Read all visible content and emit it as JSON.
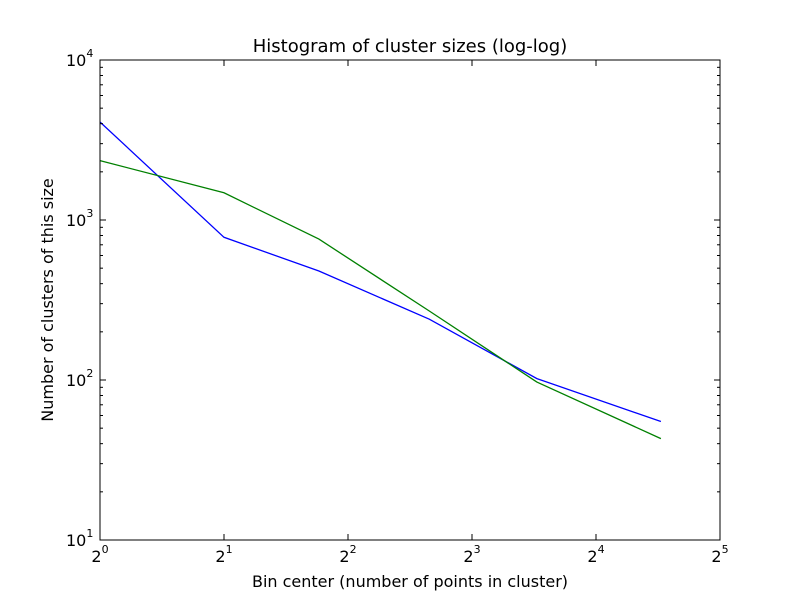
{
  "chart_data": {
    "type": "line",
    "title": "Histogram of cluster sizes (log-log)",
    "xlabel": "Bin center (number of points in cluster)",
    "ylabel": "Number of clusters of this size",
    "x_scale": "log2",
    "y_scale": "log10",
    "xlim": [
      1,
      32
    ],
    "ylim": [
      10,
      10000
    ],
    "x_ticks": [
      {
        "base": "2",
        "exp": "0",
        "value": 1
      },
      {
        "base": "2",
        "exp": "1",
        "value": 2
      },
      {
        "base": "2",
        "exp": "2",
        "value": 4
      },
      {
        "base": "2",
        "exp": "3",
        "value": 8
      },
      {
        "base": "2",
        "exp": "4",
        "value": 16
      },
      {
        "base": "2",
        "exp": "5",
        "value": 32
      }
    ],
    "y_ticks": [
      {
        "base": "10",
        "exp": "1",
        "value": 10
      },
      {
        "base": "10",
        "exp": "2",
        "value": 100
      },
      {
        "base": "10",
        "exp": "3",
        "value": 1000
      },
      {
        "base": "10",
        "exp": "4",
        "value": 10000
      }
    ],
    "grid": false,
    "series": [
      {
        "color": "#0000ff",
        "x": [
          1,
          2,
          3.4,
          6.3,
          11.5,
          23
        ],
        "y": [
          4100,
          780,
          480,
          240,
          102,
          55
        ]
      },
      {
        "color": "#008000",
        "x": [
          1,
          2,
          3.4,
          6.3,
          11.5,
          23
        ],
        "y": [
          2350,
          1480,
          760,
          270,
          97,
          43
        ]
      }
    ]
  }
}
